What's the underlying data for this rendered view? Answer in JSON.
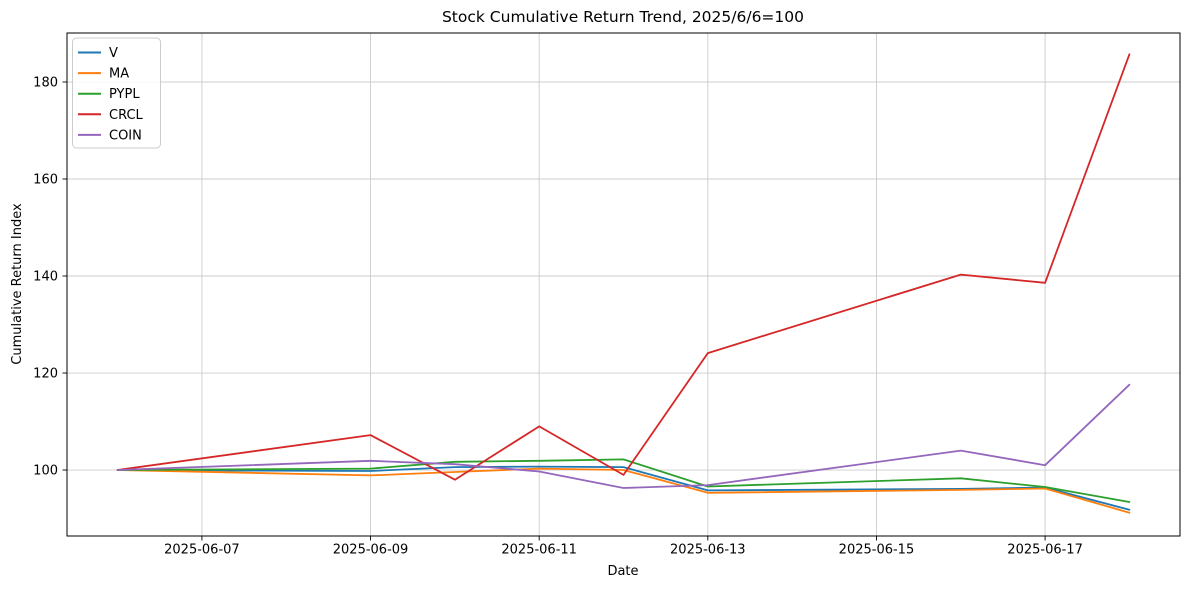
{
  "chart_data": {
    "type": "line",
    "title": "Stock Cumulative Return Trend, 2025/6/6=100",
    "xlabel": "Date",
    "ylabel": "Cumulative Return Index",
    "x_dates": [
      "2025-06-06",
      "2025-06-09",
      "2025-06-10",
      "2025-06-11",
      "2025-06-12",
      "2025-06-13",
      "2025-06-16",
      "2025-06-17",
      "2025-06-18"
    ],
    "x_day_offsets": [
      0,
      3,
      4,
      5,
      6,
      7,
      10,
      11,
      12
    ],
    "series": [
      {
        "name": "V",
        "color": "#1f77b4",
        "values": [
          100,
          99.8,
          100.6,
          100.7,
          100.6,
          95.8,
          96.1,
          96.4,
          91.8
        ]
      },
      {
        "name": "MA",
        "color": "#ff7f0e",
        "values": [
          100,
          98.9,
          99.6,
          100.3,
          100.0,
          95.3,
          95.9,
          96.2,
          91.2
        ]
      },
      {
        "name": "PYPL",
        "color": "#2ca02c",
        "values": [
          100,
          100.3,
          101.7,
          101.9,
          102.2,
          96.6,
          98.3,
          96.5,
          93.4
        ]
      },
      {
        "name": "CRCL",
        "color": "#d62728",
        "values": [
          100,
          107.2,
          98.0,
          109.0,
          99.0,
          124.1,
          140.3,
          138.6,
          185.7
        ]
      },
      {
        "name": "COIN",
        "color": "#9467bd",
        "values": [
          100,
          101.9,
          101.2,
          99.7,
          96.3,
          96.9,
          104.0,
          101.0,
          117.6
        ]
      }
    ],
    "x_ticks": [
      {
        "label": "2025-06-07",
        "day": 1
      },
      {
        "label": "2025-06-09",
        "day": 3
      },
      {
        "label": "2025-06-11",
        "day": 5
      },
      {
        "label": "2025-06-13",
        "day": 7
      },
      {
        "label": "2025-06-15",
        "day": 9
      },
      {
        "label": "2025-06-17",
        "day": 11
      }
    ],
    "y_ticks": [
      100,
      120,
      140,
      160,
      180
    ],
    "xlim_days": [
      -0.6,
      12.6
    ],
    "ylim": [
      86.4,
      190.1
    ],
    "grid": true,
    "grid_color": "#cccccc",
    "spine_color": "#000000",
    "legend_position": "upper-left",
    "legend_labels": [
      "V",
      "MA",
      "PYPL",
      "CRCL",
      "COIN"
    ],
    "background": "#ffffff"
  }
}
